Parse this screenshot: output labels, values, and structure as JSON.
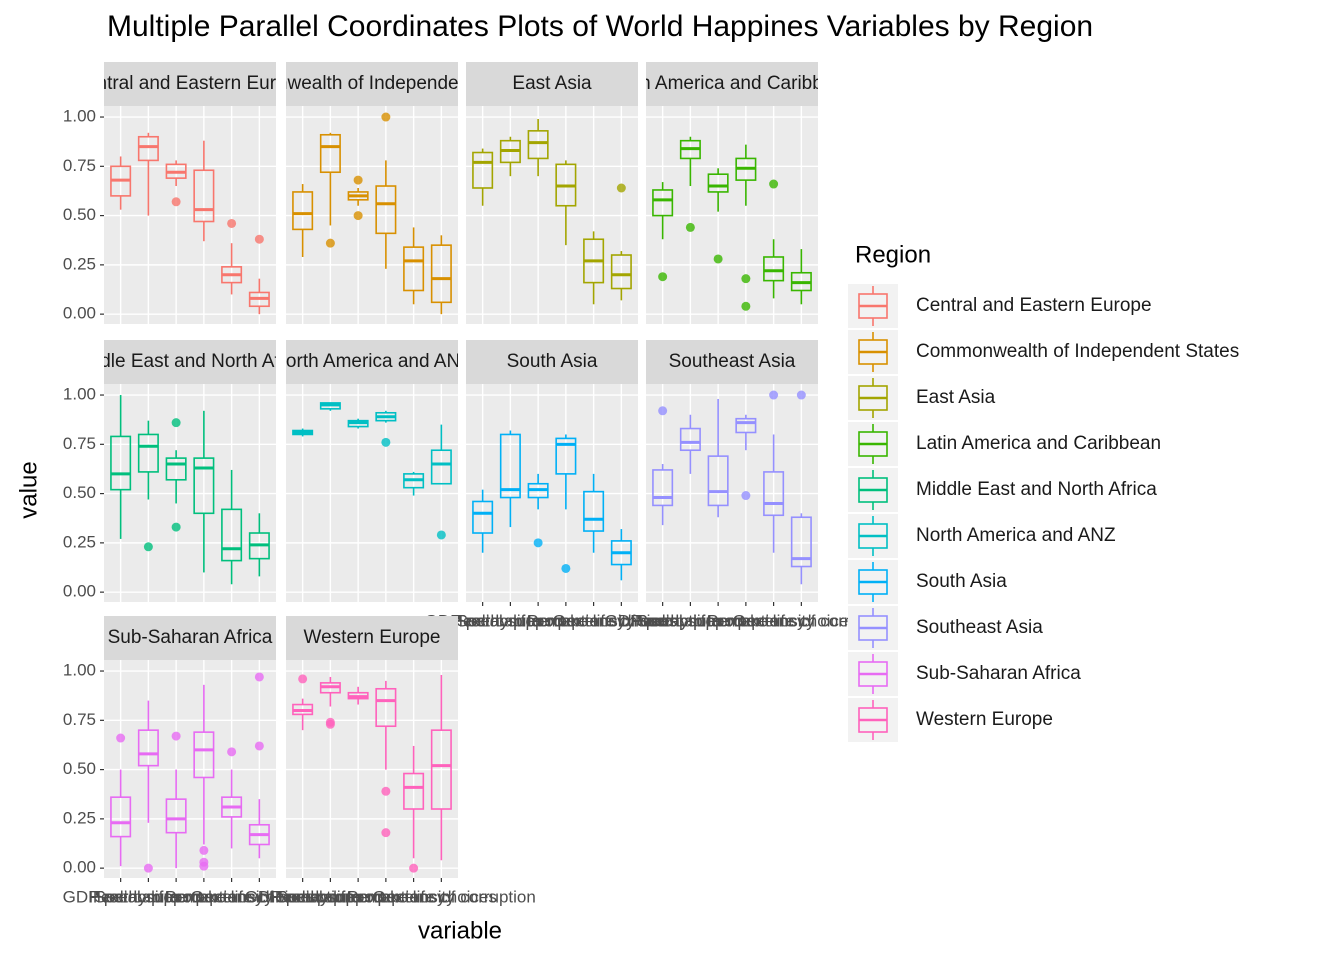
{
  "chart_data": {
    "type": "boxplot",
    "title": "Multiple Parallel Coordinates Plots of World Happines Variables by Region",
    "x_label": "variable",
    "y_label": "value",
    "legend_title": "Region",
    "categories": [
      "GDP per capita",
      "Social support",
      "Healthy life expectancy",
      "Freedom to make life choices",
      "Generosity",
      "Perceptions of corruption"
    ],
    "ylim": [
      -0.05,
      1.056
    ],
    "yticks": [
      {
        "value": 0,
        "label": "0.00"
      },
      {
        "value": 0.25,
        "label": "0.25"
      },
      {
        "value": 0.5,
        "label": "0.50"
      },
      {
        "value": 0.75,
        "label": "0.75"
      },
      {
        "value": 1,
        "label": "1.00"
      }
    ],
    "grid": true,
    "panels": [
      {
        "name": "Central and Eastern Europe",
        "color": "#F8766D",
        "boxes": [
          [
            0.53,
            0.6,
            0.68,
            0.75,
            0.8
          ],
          [
            0.5,
            0.78,
            0.85,
            0.9,
            0.92
          ],
          [
            0.65,
            0.69,
            0.72,
            0.76,
            0.78
          ],
          [
            0.37,
            0.47,
            0.53,
            0.73,
            0.88
          ],
          [
            0.1,
            0.16,
            0.2,
            0.24,
            0.36
          ],
          [
            0.0,
            0.04,
            0.08,
            0.11,
            0.18
          ]
        ],
        "outliers": [
          [],
          [],
          [
            0.57
          ],
          [],
          [
            0.46
          ],
          [
            0.38
          ]
        ]
      },
      {
        "name": "Commonwealth of Independent States",
        "color": "#D89000",
        "boxes": [
          [
            0.29,
            0.43,
            0.51,
            0.62,
            0.66
          ],
          [
            0.45,
            0.72,
            0.85,
            0.91,
            0.92
          ],
          [
            0.55,
            0.58,
            0.6,
            0.62,
            0.64
          ],
          [
            0.23,
            0.41,
            0.56,
            0.65,
            0.78
          ],
          [
            0.05,
            0.12,
            0.27,
            0.34,
            0.44
          ],
          [
            0.0,
            0.06,
            0.18,
            0.35,
            0.4
          ]
        ],
        "outliers": [
          [],
          [
            0.36
          ],
          [
            0.68,
            0.5
          ],
          [
            1.0
          ],
          [],
          []
        ]
      },
      {
        "name": "East Asia",
        "color": "#A3A500",
        "boxes": [
          [
            0.55,
            0.64,
            0.77,
            0.82,
            0.84
          ],
          [
            0.7,
            0.77,
            0.83,
            0.88,
            0.9
          ],
          [
            0.7,
            0.79,
            0.87,
            0.93,
            0.99
          ],
          [
            0.35,
            0.55,
            0.65,
            0.76,
            0.78
          ],
          [
            0.05,
            0.16,
            0.27,
            0.38,
            0.42
          ],
          [
            0.07,
            0.13,
            0.2,
            0.3,
            0.32
          ]
        ],
        "outliers": [
          [],
          [],
          [],
          [],
          [],
          [
            0.64
          ]
        ]
      },
      {
        "name": "Latin America and Caribbean",
        "color": "#39B600",
        "boxes": [
          [
            0.38,
            0.5,
            0.58,
            0.63,
            0.67
          ],
          [
            0.65,
            0.79,
            0.84,
            0.88,
            0.9
          ],
          [
            0.52,
            0.62,
            0.65,
            0.71,
            0.74
          ],
          [
            0.55,
            0.68,
            0.74,
            0.79,
            0.86
          ],
          [
            0.08,
            0.17,
            0.22,
            0.29,
            0.38
          ],
          [
            0.05,
            0.12,
            0.16,
            0.21,
            0.33
          ]
        ],
        "outliers": [
          [
            0.19
          ],
          [
            0.44
          ],
          [
            0.28
          ],
          [
            0.18,
            0.04
          ],
          [
            0.66
          ],
          []
        ]
      },
      {
        "name": "Middle East and North Africa",
        "color": "#00BF7D",
        "boxes": [
          [
            0.27,
            0.52,
            0.6,
            0.79,
            1.0
          ],
          [
            0.47,
            0.61,
            0.74,
            0.8,
            0.87
          ],
          [
            0.45,
            0.57,
            0.65,
            0.68,
            0.72
          ],
          [
            0.1,
            0.4,
            0.63,
            0.68,
            0.92
          ],
          [
            0.04,
            0.16,
            0.22,
            0.42,
            0.62
          ],
          [
            0.08,
            0.17,
            0.24,
            0.3,
            0.4
          ]
        ],
        "outliers": [
          [],
          [
            0.23
          ],
          [
            0.86,
            0.33
          ],
          [],
          [],
          []
        ]
      },
      {
        "name": "North America and ANZ",
        "color": "#00BFC4",
        "boxes": [
          [
            0.79,
            0.8,
            0.81,
            0.82,
            0.83
          ],
          [
            0.92,
            0.93,
            0.95,
            0.96,
            0.96
          ],
          [
            0.83,
            0.84,
            0.86,
            0.87,
            0.88
          ],
          [
            0.86,
            0.87,
            0.89,
            0.91,
            0.92
          ],
          [
            0.49,
            0.53,
            0.57,
            0.6,
            0.61
          ],
          [
            0.55,
            0.55,
            0.65,
            0.72,
            0.85
          ]
        ],
        "outliers": [
          [],
          [],
          [],
          [
            0.76
          ],
          [],
          [
            0.29
          ]
        ]
      },
      {
        "name": "South Asia",
        "color": "#00B0F6",
        "boxes": [
          [
            0.2,
            0.3,
            0.4,
            0.46,
            0.52
          ],
          [
            0.33,
            0.48,
            0.52,
            0.8,
            0.82
          ],
          [
            0.42,
            0.48,
            0.52,
            0.55,
            0.6
          ],
          [
            0.42,
            0.6,
            0.75,
            0.78,
            0.8
          ],
          [
            0.2,
            0.31,
            0.37,
            0.51,
            0.6
          ],
          [
            0.06,
            0.14,
            0.2,
            0.26,
            0.32
          ]
        ],
        "outliers": [
          [],
          [],
          [
            0.25
          ],
          [
            0.12
          ],
          [],
          []
        ]
      },
      {
        "name": "Southeast Asia",
        "color": "#9590FF",
        "boxes": [
          [
            0.34,
            0.44,
            0.48,
            0.62,
            0.65
          ],
          [
            0.6,
            0.72,
            0.76,
            0.83,
            0.9
          ],
          [
            0.38,
            0.44,
            0.51,
            0.69,
            0.98
          ],
          [
            0.72,
            0.81,
            0.86,
            0.88,
            0.9
          ],
          [
            0.2,
            0.39,
            0.45,
            0.61,
            0.8
          ],
          [
            0.04,
            0.13,
            0.17,
            0.38,
            0.4
          ]
        ],
        "outliers": [
          [
            0.92
          ],
          [],
          [],
          [
            0.49
          ],
          [
            1.0
          ],
          [
            1.0
          ]
        ]
      },
      {
        "name": "Sub-Saharan Africa",
        "color": "#E76BF3",
        "boxes": [
          [
            0.01,
            0.16,
            0.23,
            0.36,
            0.5
          ],
          [
            0.23,
            0.52,
            0.58,
            0.7,
            0.85
          ],
          [
            0.0,
            0.18,
            0.25,
            0.35,
            0.5
          ],
          [
            0.12,
            0.46,
            0.6,
            0.69,
            0.93
          ],
          [
            0.1,
            0.26,
            0.31,
            0.36,
            0.5
          ],
          [
            0.05,
            0.12,
            0.17,
            0.22,
            0.35
          ]
        ],
        "outliers": [
          [
            0.66
          ],
          [
            0.0
          ],
          [
            0.67
          ],
          [
            0.09,
            0.03,
            0.01
          ],
          [
            0.59
          ],
          [
            0.97,
            0.62
          ]
        ]
      },
      {
        "name": "Western Europe",
        "color": "#FF62BC",
        "boxes": [
          [
            0.7,
            0.78,
            0.8,
            0.83,
            0.86
          ],
          [
            0.82,
            0.89,
            0.92,
            0.94,
            0.97
          ],
          [
            0.83,
            0.86,
            0.87,
            0.89,
            0.92
          ],
          [
            0.5,
            0.72,
            0.85,
            0.91,
            0.95
          ],
          [
            0.05,
            0.3,
            0.41,
            0.48,
            0.62
          ],
          [
            0.04,
            0.3,
            0.52,
            0.7,
            0.98
          ]
        ],
        "outliers": [
          [
            0.96
          ],
          [
            0.74,
            0.73
          ],
          [],
          [
            0.39,
            0.18
          ],
          [
            0.0
          ],
          []
        ]
      }
    ]
  }
}
